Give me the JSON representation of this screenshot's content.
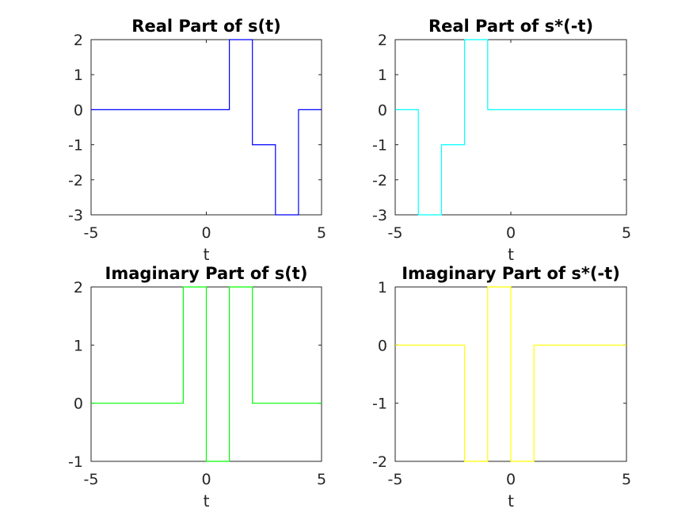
{
  "chart_data": [
    {
      "type": "line",
      "title": "Real Part of s(t)",
      "xlabel": "t",
      "ylabel": "",
      "xlim": [
        -5,
        5
      ],
      "ylim": [
        -3,
        2
      ],
      "xticks": [
        -5,
        0,
        5
      ],
      "yticks": [
        -3,
        -2,
        -1,
        0,
        1,
        2
      ],
      "grid": false,
      "color": "#0000ff",
      "series": [
        {
          "x": [
            -5,
            1,
            1,
            2,
            2,
            3,
            3,
            4,
            4,
            5
          ],
          "y": [
            0,
            0,
            2,
            2,
            -1,
            -1,
            -3,
            -3,
            0,
            0
          ]
        }
      ]
    },
    {
      "type": "line",
      "title": "Real Part of s*(-t)",
      "xlabel": "t",
      "ylabel": "",
      "xlim": [
        -5,
        5
      ],
      "ylim": [
        -3,
        2
      ],
      "xticks": [
        -5,
        0,
        5
      ],
      "yticks": [
        -3,
        -2,
        -1,
        0,
        1,
        2
      ],
      "grid": false,
      "color": "#00ffff",
      "series": [
        {
          "x": [
            -5,
            -4,
            -4,
            -3,
            -3,
            -2,
            -2,
            -1,
            -1,
            5
          ],
          "y": [
            0,
            0,
            -3,
            -3,
            -1,
            -1,
            2,
            2,
            0,
            0
          ]
        }
      ]
    },
    {
      "type": "line",
      "title": "Imaginary Part of s(t)",
      "xlabel": "t",
      "ylabel": "",
      "xlim": [
        -5,
        5
      ],
      "ylim": [
        -1,
        2
      ],
      "xticks": [
        -5,
        0,
        5
      ],
      "yticks": [
        -1,
        0,
        1,
        2
      ],
      "grid": false,
      "color": "#00ff00",
      "series": [
        {
          "x": [
            -5,
            -1,
            -1,
            0,
            0,
            1,
            1,
            2,
            2,
            5
          ],
          "y": [
            0,
            0,
            2,
            2,
            -1,
            -1,
            2,
            2,
            0,
            0
          ]
        }
      ]
    },
    {
      "type": "line",
      "title": "Imaginary Part of s*(-t)",
      "xlabel": "t",
      "ylabel": "",
      "xlim": [
        -5,
        5
      ],
      "ylim": [
        -2,
        1
      ],
      "xticks": [
        -5,
        0,
        5
      ],
      "yticks": [
        -2,
        -1,
        0,
        1
      ],
      "grid": false,
      "color": "#ffff00",
      "series": [
        {
          "x": [
            -5,
            -2,
            -2,
            -1,
            -1,
            0,
            0,
            1,
            1,
            5
          ],
          "y": [
            0,
            0,
            -2,
            -2,
            1,
            1,
            -2,
            -2,
            0,
            0
          ]
        }
      ]
    }
  ]
}
